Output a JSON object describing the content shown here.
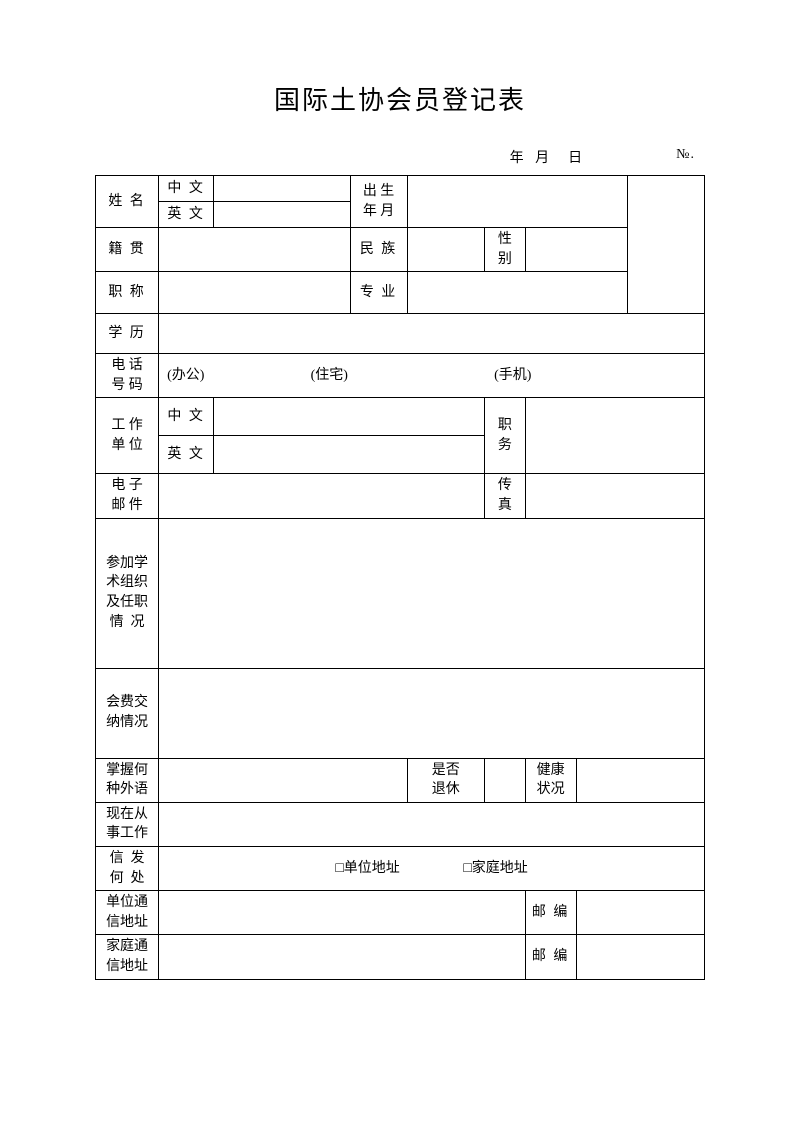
{
  "title": "国际土协会员登记表",
  "date_label": "年 月  日",
  "number_label": "№.",
  "labels": {
    "name": "姓 名",
    "chinese": "中 文",
    "english": "英 文",
    "birth": "出 生\n年 月",
    "native_place": "籍 贯",
    "ethnicity": "民 族",
    "gender": "性\n别",
    "title_rank": "职 称",
    "major": "专 业",
    "education": "学 历",
    "phone": "电 话\n号 码",
    "phone_office": "(办公)",
    "phone_home": "(住宅)",
    "phone_mobile": "(手机)",
    "work_unit": "工 作\n单 位",
    "position": "职\n务",
    "email": "电 子\n邮 件",
    "fax": "传\n真",
    "academic": "参加学\n术组织\n及任职\n情  况",
    "fee": "会费交\n纳情况",
    "foreign_lang": "掌握何\n种外语",
    "retired": "是否\n退休",
    "health": "健康\n状况",
    "current_work": "现在从\n事工作",
    "mail_to": "信  发\n何  处",
    "unit_addr_cb": "□单位地址",
    "home_addr_cb": "□家庭地址",
    "unit_addr": "单位通\n信地址",
    "home_addr": "家庭通\n信地址",
    "postcode": "邮 编"
  },
  "style": {
    "border_color": "#000000",
    "bg": "#ffffff",
    "font": "SimSun"
  }
}
